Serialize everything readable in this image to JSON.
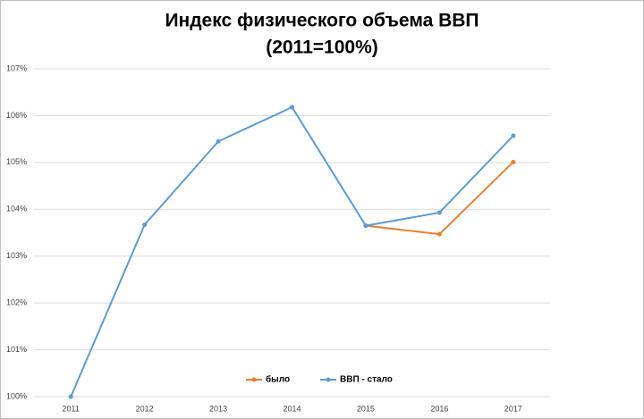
{
  "chart_data": {
    "type": "line",
    "title": "Индекс физического объема ВВП",
    "subtitle": "(2011=100%)",
    "categories": [
      "2011",
      "2012",
      "2013",
      "2014",
      "2015",
      "2016",
      "2017"
    ],
    "series": [
      {
        "name": "было",
        "color": "#ed7d31",
        "values": [
          null,
          null,
          null,
          null,
          103.65,
          103.47,
          105.01
        ]
      },
      {
        "name": "ВВП - стало",
        "color": "#5b9bd5",
        "values": [
          100,
          103.67,
          105.45,
          106.18,
          103.65,
          103.93,
          105.57
        ]
      }
    ],
    "ylim": [
      100,
      107
    ],
    "yticks": [
      {
        "value": 100,
        "label": "100%"
      },
      {
        "value": 101,
        "label": "101%"
      },
      {
        "value": 102,
        "label": "102%"
      },
      {
        "value": 103,
        "label": "103%"
      },
      {
        "value": 104,
        "label": "104%"
      },
      {
        "value": 105,
        "label": "105%"
      },
      {
        "value": 106,
        "label": "106%"
      },
      {
        "value": 107,
        "label": "107%"
      }
    ],
    "grid": true,
    "legend": "bottom"
  }
}
